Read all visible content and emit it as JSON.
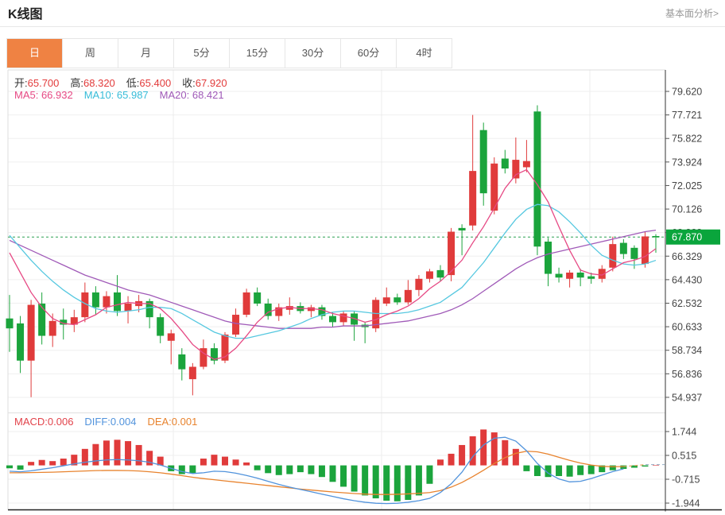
{
  "header": {
    "title": "K线图",
    "link": "基本面分析>"
  },
  "tabs": {
    "items": [
      "日",
      "周",
      "月",
      "5分",
      "15分",
      "30分",
      "60分",
      "4时"
    ],
    "selected": 0,
    "selected_color": "#ef8243"
  },
  "main_legend": {
    "label_color": "#333333",
    "value_color": "#e23b3b",
    "ohlc": [
      {
        "label": "开:",
        "value": "65.700"
      },
      {
        "label": "高:",
        "value": "68.320"
      },
      {
        "label": "低:",
        "value": "65.400"
      },
      {
        "label": "收:",
        "value": "67.920"
      }
    ],
    "ma": [
      {
        "label": "MA5:",
        "value": "66.932",
        "color": "#e64984"
      },
      {
        "label": "MA10:",
        "value": "65.987",
        "color": "#36bcd8"
      },
      {
        "label": "MA20:",
        "value": "68.421",
        "color": "#a05ab8"
      }
    ]
  },
  "macd_legend": [
    {
      "label": "MACD:",
      "value": "0.006",
      "color": "#e2434b"
    },
    {
      "label": "DIFF:",
      "value": "0.004",
      "color": "#5193dc"
    },
    {
      "label": "DEA:",
      "value": "0.001",
      "color": "#e8832e"
    }
  ],
  "chart_data": {
    "type": "candlestick+macd",
    "title": "K线图",
    "legend_position": "top-left-overlay",
    "grid": true,
    "price_ticks": [
      79.62,
      77.721,
      75.822,
      73.924,
      72.025,
      70.126,
      68.228,
      66.329,
      64.43,
      62.532,
      60.633,
      58.734,
      56.836,
      54.937
    ],
    "current_price": 67.87,
    "candles_ohlc": [
      [
        61.3,
        63.2,
        58.6,
        60.5
      ],
      [
        60.9,
        61.5,
        56.9,
        57.9
      ],
      [
        57.9,
        62.8,
        54.95,
        62.4
      ],
      [
        62.5,
        63.4,
        59.2,
        59.9
      ],
      [
        59.9,
        61.7,
        59.0,
        61.1
      ],
      [
        61.2,
        62.1,
        59.6,
        60.8
      ],
      [
        60.8,
        62.0,
        60.2,
        61.4
      ],
      [
        61.4,
        64.2,
        61.0,
        63.4
      ],
      [
        63.4,
        63.9,
        61.6,
        62.2
      ],
      [
        62.2,
        63.5,
        61.7,
        63.1
      ],
      [
        63.4,
        64.8,
        61.5,
        61.9
      ],
      [
        61.9,
        63.1,
        60.9,
        62.5
      ],
      [
        62.3,
        63.2,
        61.8,
        62.7
      ],
      [
        62.7,
        62.9,
        60.5,
        61.4
      ],
      [
        61.4,
        61.7,
        59.3,
        59.9
      ],
      [
        59.5,
        60.4,
        57.6,
        60.1
      ],
      [
        58.4,
        58.9,
        56.3,
        57.2
      ],
      [
        56.4,
        57.7,
        55.1,
        57.4
      ],
      [
        57.4,
        59.6,
        57.2,
        58.9
      ],
      [
        58.9,
        59.3,
        57.6,
        57.9
      ],
      [
        57.9,
        60.2,
        57.7,
        60.0
      ],
      [
        60.0,
        62.1,
        59.8,
        61.6
      ],
      [
        61.6,
        63.7,
        61.4,
        63.4
      ],
      [
        63.4,
        63.8,
        62.3,
        62.5
      ],
      [
        62.5,
        62.9,
        61.2,
        61.5
      ],
      [
        61.5,
        62.5,
        61.1,
        62.2
      ],
      [
        62.0,
        63.0,
        61.6,
        62.3
      ],
      [
        62.3,
        62.6,
        61.7,
        61.9
      ],
      [
        61.9,
        62.4,
        61.4,
        62.2
      ],
      [
        62.2,
        62.4,
        61.2,
        61.5
      ],
      [
        61.5,
        61.8,
        60.6,
        61.0
      ],
      [
        61.0,
        61.9,
        60.7,
        61.7
      ],
      [
        61.7,
        61.9,
        59.5,
        60.8
      ],
      [
        60.8,
        61.0,
        59.3,
        60.6
      ],
      [
        60.5,
        63.0,
        60.2,
        62.8
      ],
      [
        62.5,
        63.8,
        62.3,
        63.0
      ],
      [
        63.0,
        63.3,
        62.4,
        62.6
      ],
      [
        62.6,
        64.4,
        62.4,
        63.6
      ],
      [
        63.6,
        64.8,
        63.1,
        64.5
      ],
      [
        64.5,
        65.3,
        64.2,
        65.1
      ],
      [
        65.2,
        65.6,
        64.3,
        64.6
      ],
      [
        64.8,
        68.6,
        64.3,
        68.3
      ],
      [
        68.6,
        68.9,
        66.4,
        68.4
      ],
      [
        68.8,
        77.72,
        68.4,
        73.2
      ],
      [
        76.5,
        77.1,
        70.4,
        71.4
      ],
      [
        70.0,
        74.3,
        69.7,
        73.8
      ],
      [
        74.2,
        74.9,
        73.0,
        73.4
      ],
      [
        72.6,
        75.9,
        72.2,
        74.1
      ],
      [
        73.5,
        75.7,
        73.1,
        74.0
      ],
      [
        78.0,
        78.5,
        66.4,
        67.1
      ],
      [
        67.5,
        67.8,
        63.9,
        64.9
      ],
      [
        64.9,
        65.4,
        64.2,
        64.6
      ],
      [
        64.5,
        65.2,
        63.8,
        65.0
      ],
      [
        65.0,
        65.3,
        63.9,
        64.6
      ],
      [
        64.7,
        65.0,
        64.1,
        64.5
      ],
      [
        64.5,
        65.6,
        64.2,
        65.3
      ],
      [
        65.4,
        67.9,
        65.1,
        67.3
      ],
      [
        67.4,
        67.7,
        66.1,
        66.5
      ],
      [
        67.0,
        67.2,
        65.3,
        66.1
      ],
      [
        65.7,
        68.32,
        65.4,
        67.92
      ],
      [
        67.95,
        68.1,
        66.6,
        67.87
      ]
    ],
    "ma5": [
      66.6,
      65.0,
      63.4,
      62.2,
      61.3,
      60.9,
      60.8,
      61.2,
      61.6,
      62.2,
      62.4,
      62.6,
      62.5,
      62.5,
      62.1,
      61.3,
      60.3,
      59.2,
      58.5,
      58.0,
      58.2,
      58.9,
      59.9,
      61.0,
      61.8,
      62.1,
      62.2,
      62.1,
      62.1,
      62.0,
      61.7,
      61.5,
      61.3,
      61.0,
      61.2,
      61.6,
      61.9,
      62.3,
      62.9,
      63.7,
      64.3,
      65.1,
      66.0,
      67.4,
      68.7,
      70.2,
      71.8,
      72.9,
      73.3,
      72.1,
      70.7,
      68.7,
      66.8,
      65.2,
      64.9,
      64.8,
      65.3,
      65.8,
      66.0,
      66.3,
      66.93
    ],
    "ma10": [
      68.0,
      67.0,
      66.0,
      65.1,
      64.3,
      63.6,
      63.0,
      62.5,
      62.1,
      61.9,
      61.8,
      61.9,
      62.0,
      62.2,
      62.2,
      62.1,
      61.7,
      61.2,
      60.7,
      60.2,
      59.9,
      59.7,
      59.7,
      59.9,
      60.1,
      60.3,
      60.6,
      60.9,
      61.3,
      61.6,
      61.8,
      61.9,
      61.9,
      61.8,
      61.7,
      61.7,
      61.7,
      61.8,
      62.0,
      62.3,
      62.6,
      63.2,
      63.8,
      64.8,
      65.8,
      67.0,
      68.2,
      69.3,
      70.1,
      70.5,
      70.4,
      69.9,
      69.1,
      68.2,
      67.2,
      66.4,
      66.0,
      65.7,
      65.6,
      65.7,
      65.99
    ],
    "ma20": [
      67.6,
      67.2,
      66.8,
      66.4,
      66.0,
      65.6,
      65.2,
      64.8,
      64.5,
      64.2,
      63.9,
      63.6,
      63.4,
      63.2,
      62.9,
      62.6,
      62.3,
      62.0,
      61.7,
      61.4,
      61.1,
      60.9,
      60.8,
      60.7,
      60.6,
      60.5,
      60.5,
      60.5,
      60.5,
      60.6,
      60.6,
      60.7,
      60.7,
      60.7,
      60.8,
      60.9,
      61.0,
      61.1,
      61.3,
      61.5,
      61.7,
      62.0,
      62.4,
      62.9,
      63.5,
      64.1,
      64.7,
      65.3,
      65.8,
      66.2,
      66.5,
      66.7,
      66.9,
      67.1,
      67.3,
      67.5,
      67.7,
      67.9,
      68.1,
      68.3,
      68.42
    ],
    "macd": {
      "ticks": [
        1.744,
        0.515,
        -0.715,
        -1.944
      ],
      "histogram": [
        -0.15,
        -0.22,
        0.18,
        0.28,
        0.22,
        0.35,
        0.55,
        0.85,
        1.1,
        1.28,
        1.32,
        1.25,
        1.05,
        0.75,
        0.45,
        -0.3,
        -0.45,
        -0.4,
        0.35,
        0.55,
        0.45,
        0.3,
        0.15,
        -0.25,
        -0.4,
        -0.5,
        -0.45,
        -0.35,
        -0.45,
        -0.6,
        -0.85,
        -1.1,
        -1.35,
        -1.55,
        -1.7,
        -1.82,
        -1.85,
        -1.78,
        -1.55,
        -0.95,
        0.3,
        0.6,
        1.05,
        1.5,
        1.85,
        1.7,
        1.3,
        0.85,
        -0.3,
        -0.55,
        -0.6,
        -0.55,
        -0.58,
        -0.5,
        -0.45,
        -0.35,
        -0.25,
        -0.18,
        -0.12,
        -0.06,
        0.006
      ],
      "diff": [
        -0.3,
        -0.33,
        -0.28,
        -0.2,
        -0.12,
        -0.02,
        0.08,
        0.16,
        0.23,
        0.28,
        0.3,
        0.28,
        0.24,
        0.16,
        0.02,
        -0.15,
        -0.32,
        -0.42,
        -0.38,
        -0.3,
        -0.32,
        -0.4,
        -0.52,
        -0.66,
        -0.82,
        -0.98,
        -1.12,
        -1.24,
        -1.36,
        -1.48,
        -1.6,
        -1.72,
        -1.82,
        -1.9,
        -1.95,
        -1.97,
        -1.95,
        -1.9,
        -1.82,
        -1.7,
        -1.4,
        -0.95,
        -0.35,
        0.45,
        1.05,
        1.4,
        1.45,
        1.25,
        0.75,
        0.1,
        -0.4,
        -0.7,
        -0.85,
        -0.82,
        -0.68,
        -0.5,
        -0.32,
        -0.18,
        -0.08,
        -0.02,
        0.004
      ],
      "dea": [
        -0.38,
        -0.38,
        -0.37,
        -0.36,
        -0.35,
        -0.33,
        -0.31,
        -0.29,
        -0.27,
        -0.26,
        -0.26,
        -0.27,
        -0.29,
        -0.33,
        -0.38,
        -0.45,
        -0.53,
        -0.61,
        -0.68,
        -0.74,
        -0.8,
        -0.86,
        -0.92,
        -0.98,
        -1.04,
        -1.1,
        -1.16,
        -1.22,
        -1.27,
        -1.32,
        -1.37,
        -1.41,
        -1.45,
        -1.48,
        -1.5,
        -1.5,
        -1.49,
        -1.47,
        -1.44,
        -1.4,
        -1.3,
        -1.12,
        -0.88,
        -0.58,
        -0.25,
        0.1,
        0.4,
        0.62,
        0.73,
        0.7,
        0.58,
        0.42,
        0.26,
        0.12,
        0.02,
        -0.05,
        -0.07,
        -0.06,
        -0.03,
        0.0,
        0.001
      ]
    },
    "colors": {
      "up": "#e03b3b",
      "down": "#1ba43c",
      "ma5": "#e64984",
      "ma10": "#56c8e0",
      "ma20": "#a05ab8",
      "diff": "#5193dc",
      "dea": "#e8832e",
      "price_line": "#2ba052",
      "badge": "#0aa53c",
      "grid": "#efefef",
      "axis": "#555555"
    }
  }
}
